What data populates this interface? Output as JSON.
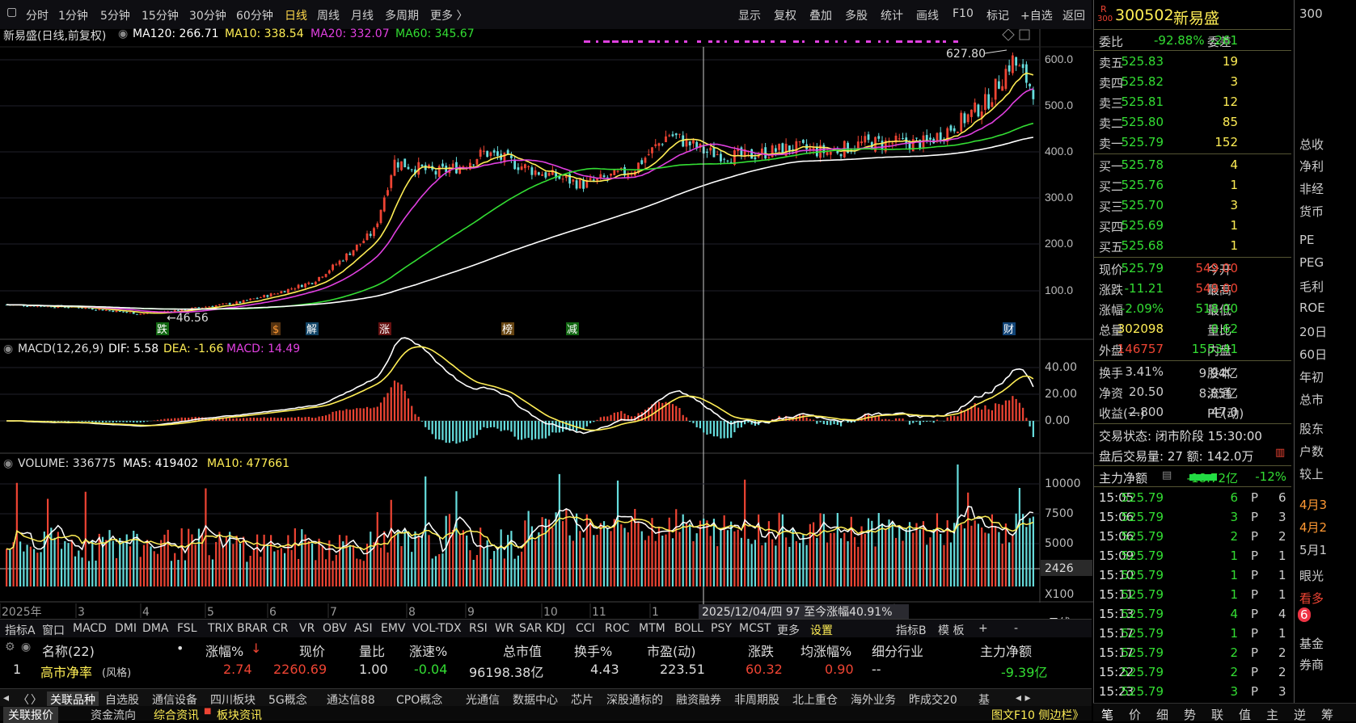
{
  "toolbar": {
    "periods": [
      "分时",
      "1分钟",
      "5分钟",
      "15分钟",
      "30分钟",
      "60分钟",
      "日线",
      "周线",
      "月线",
      "多周期",
      "更多 〉"
    ],
    "active": "日线",
    "right": [
      "显示",
      "复权",
      "叠加",
      "多股",
      "统计",
      "画线",
      "F10",
      "标记",
      "+自选",
      "返回"
    ]
  },
  "ma_legend": {
    "title": "新易盛(日线,前复权)",
    "ma120": "MA120: 266.71",
    "ma10": "MA10: 338.54",
    "ma20": "MA20: 332.07",
    "ma60": "MA60: 345.67"
  },
  "colors": {
    "ma120": "#ffffff",
    "ma10": "#ffee55",
    "ma20": "#e040e0",
    "ma60": "#33dd33",
    "up": "#ee4433",
    "down": "#66dddd"
  },
  "price_axis": [
    "600.0",
    "500.0",
    "400.0",
    "300.0",
    "200.0",
    "100.0"
  ],
  "price_annotations": {
    "high": "627.80",
    "low": "←46.56"
  },
  "event_markers": [
    "跌",
    "$",
    "解",
    "涨",
    "榜",
    "减",
    "财"
  ],
  "macd_legend": {
    "title": "MACD(12,26,9)",
    "dif": "DIF: 5.58",
    "dea": "DEA: -1.66",
    "macd": "MACD: 14.49"
  },
  "macd_axis": [
    "40.00",
    "20.00",
    "0.00"
  ],
  "vol_legend": {
    "title": "VOLUME: 336775",
    "ma5": "MA5: 419402",
    "ma10": "MA10: 477661"
  },
  "vol_axis": [
    "10000",
    "7500",
    "5000",
    "2426"
  ],
  "vol_unit": "X100",
  "date_axis": [
    "2025年",
    "3",
    "4",
    "5",
    "6",
    "7",
    "8",
    "9",
    "10",
    "11",
    "1",
    "4"
  ],
  "cursor_label": "2025/12/04/四 97 至今涨幅40.91%",
  "period_tag": "日线",
  "indicators": [
    "指标A",
    "窗口",
    "MACD",
    "DMI",
    "DMA",
    "FSL",
    "TRIX",
    "BRAR",
    "CR",
    "VR",
    "OBV",
    "ASI",
    "EMV",
    "VOL-TDX",
    "RSI",
    "WR",
    "SAR",
    "KDJ",
    "CCI",
    "ROC",
    "MTM",
    "BOLL",
    "PSY",
    "MCST",
    "更多",
    "设置"
  ],
  "indicators_right": [
    "指标B",
    "模 板",
    "+",
    "-"
  ],
  "table": {
    "headers": [
      "名称(22)",
      "•",
      "涨幅%",
      "↓",
      "现价",
      "量比",
      "涨速%",
      "总市值",
      "换手%",
      "市盈(动)",
      "涨跌",
      "均涨幅%",
      "细分行业",
      "主力净额"
    ],
    "row": {
      "idx": "1",
      "name": "高市净率",
      "tag": "(风格)",
      "chg": "2.74",
      "price": "2260.69",
      "vr": "1.00",
      "speed": "-0.04",
      "mcap": "96198.38亿",
      "turn": "4.43",
      "pe": "223.51",
      "diff": "60.32",
      "avg": "0.90",
      "ind": "--",
      "net": "-9.39亿"
    }
  },
  "sector_tabs": [
    "关联品种",
    "自选股",
    "通信设备",
    "四川板块",
    "5G概念",
    "通达信88",
    "CPO概念",
    "光通信",
    "数据中心",
    "芯片",
    "深股通标的",
    "融资融券",
    "非周期股",
    "北上重仓",
    "海外业务",
    "昨成交20",
    "基"
  ],
  "bottom_tabs": [
    "关联报价",
    "资金流向",
    "综合资讯",
    "板块资讯"
  ],
  "bottom_right": "图文F10 侧边栏》",
  "quote": {
    "badge": "R",
    "badge2": "300",
    "code": "300502",
    "name": "新易盛",
    "wb_label": "委比",
    "wb": "-92.88%",
    "wc_label": "委差",
    "wc": "-261",
    "asks": [
      {
        "l": "卖五",
        "p": "525.83",
        "v": "19"
      },
      {
        "l": "卖四",
        "p": "525.82",
        "v": "3"
      },
      {
        "l": "卖三",
        "p": "525.81",
        "v": "12"
      },
      {
        "l": "卖二",
        "p": "525.80",
        "v": "85"
      },
      {
        "l": "卖一",
        "p": "525.79",
        "v": "152"
      }
    ],
    "bids": [
      {
        "l": "买一",
        "p": "525.78",
        "v": "4"
      },
      {
        "l": "买二",
        "p": "525.76",
        "v": "1"
      },
      {
        "l": "买三",
        "p": "525.70",
        "v": "3"
      },
      {
        "l": "买四",
        "p": "525.69",
        "v": "1"
      },
      {
        "l": "买五",
        "p": "525.68",
        "v": "1"
      }
    ],
    "stats": [
      [
        "现价",
        "525.79",
        "今开",
        "549.00"
      ],
      [
        "涨跌",
        "-11.21",
        "最高",
        "549.00"
      ],
      [
        "涨幅",
        "-2.09%",
        "最低",
        "518.00"
      ],
      [
        "总量",
        "302098",
        "量比",
        "0.62"
      ],
      [
        "外盘",
        "146757",
        "内盘",
        "155341"
      ]
    ],
    "stats2": [
      [
        "换手",
        "3.41%",
        "股本",
        "9.94亿"
      ],
      [
        "净资",
        "20.50",
        "流通",
        "8.85亿"
      ],
      [
        "收益(一)",
        "2.800",
        "PE(动)",
        "47.0"
      ]
    ],
    "status": "交易状态: 闭市阶段 15:30:00",
    "after": "盘后交易量: 27  额: 142.0万",
    "net_label": "主力净额",
    "net_val": "-18.72亿",
    "net_pct": "-12%",
    "ticks": [
      [
        "15:05",
        "525.79",
        "6",
        "P",
        "6"
      ],
      [
        "15:06",
        "525.79",
        "3",
        "P",
        "3"
      ],
      [
        "15:06",
        "525.79",
        "2",
        "P",
        "2"
      ],
      [
        "15:09",
        "525.79",
        "1",
        "P",
        "1"
      ],
      [
        "15:10",
        "525.79",
        "1",
        "P",
        "1"
      ],
      [
        "15:11",
        "525.79",
        "1",
        "P",
        "1"
      ],
      [
        "15:13",
        "525.79",
        "4",
        "P",
        "4"
      ],
      [
        "15:17",
        "525.79",
        "1",
        "P",
        "1"
      ],
      [
        "15:17",
        "525.79",
        "2",
        "P",
        "2"
      ],
      [
        "15:22",
        "525.79",
        "2",
        "P",
        "2"
      ],
      [
        "15:23",
        "525.79",
        "3",
        "P",
        "3"
      ]
    ],
    "bottom_tabs": [
      "笔",
      "价",
      "细",
      "势",
      "联",
      "值",
      "主",
      "逆",
      "筹"
    ]
  },
  "edge": [
    "300",
    "总收",
    "净利",
    "非经",
    "货币",
    "PE",
    "PEG",
    "毛利",
    "ROE",
    "20日",
    "60日",
    "年初",
    "总市",
    "股东",
    "户数",
    "较上",
    "4月3",
    "4月2",
    "5月1",
    "眼光",
    "看多",
    "6",
    "基金",
    "券商"
  ]
}
